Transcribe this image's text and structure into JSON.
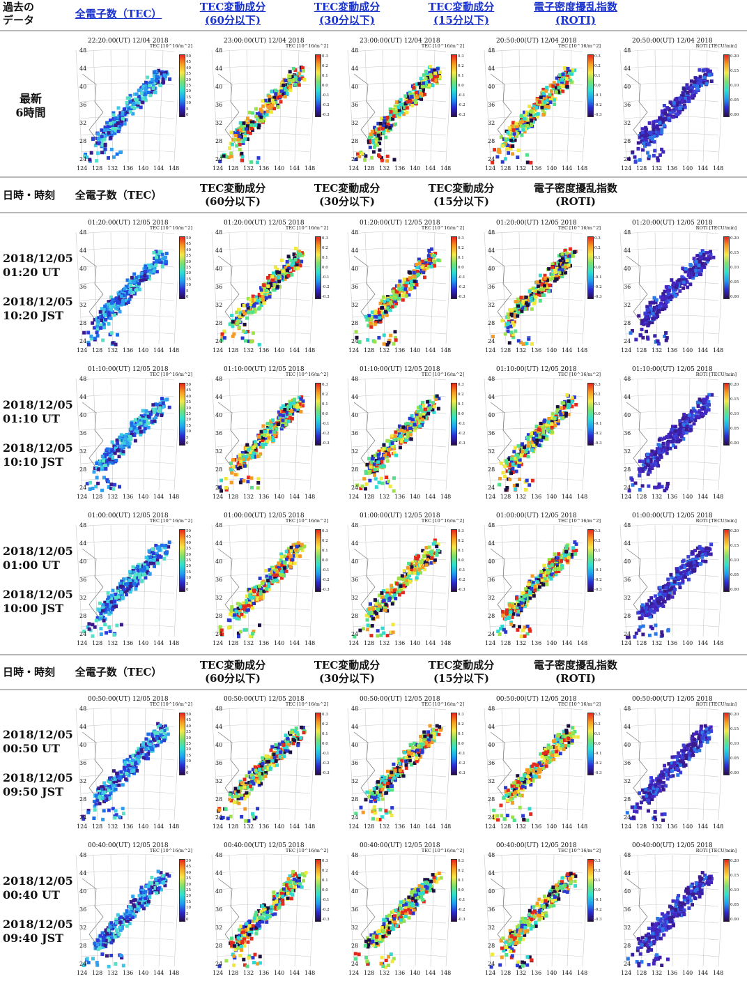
{
  "header_top": {
    "col0": [
      "過去の",
      "データ"
    ],
    "cols": [
      {
        "l1": "全電子数（TEC）",
        "l2": "",
        "link": true
      },
      {
        "l1": "TEC変動成分",
        "l2": "(60分以下)",
        "link": true
      },
      {
        "l1": "TEC変動成分",
        "l2": "(30分以下)",
        "link": true
      },
      {
        "l1": "TEC変動成分",
        "l2": "(15分以下)",
        "link": true
      },
      {
        "l1": "電子密度擾乱指数",
        "l2": "(ROTI)",
        "link": true
      }
    ]
  },
  "header_mid": {
    "col0": "日時・時刻",
    "cols": [
      {
        "l1": "全電子数（TEC）",
        "l2": ""
      },
      {
        "l1": "TEC変動成分",
        "l2": "(60分以下)"
      },
      {
        "l1": "TEC変動成分",
        "l2": "(30分以下)"
      },
      {
        "l1": "TEC変動成分",
        "l2": "(15分以下)"
      },
      {
        "l1": "電子密度擾乱指数",
        "l2": "(ROTI)"
      }
    ]
  },
  "latest": {
    "label": [
      "最新",
      "6時間"
    ],
    "timestamps": [
      "22:20:00(UT) 12/04 2018",
      "23:00:00(UT) 12/04 2018",
      "23:00:00(UT) 12/04 2018",
      "20:50:00(UT) 12/04 2018",
      "20:50:00(UT) 12/04 2018"
    ]
  },
  "rows": [
    {
      "ut": "2018/12/05",
      "ut_time": "01:20 UT",
      "jst": "2018/12/05",
      "jst_time": "10:20 JST",
      "ts": "01:20:00(UT) 12/05 2018"
    },
    {
      "ut": "2018/12/05",
      "ut_time": "01:10 UT",
      "jst": "2018/12/05",
      "jst_time": "10:10 JST",
      "ts": "01:10:00(UT) 12/05 2018"
    },
    {
      "ut": "2018/12/05",
      "ut_time": "01:00 UT",
      "jst": "2018/12/05",
      "jst_time": "10:00 JST",
      "ts": "01:00:00(UT) 12/05 2018"
    },
    {
      "ut": "2018/12/05",
      "ut_time": "00:50 UT",
      "jst": "2018/12/05",
      "jst_time": "09:50 JST",
      "ts": "00:50:00(UT) 12/05 2018"
    },
    {
      "ut": "2018/12/05",
      "ut_time": "00:40 UT",
      "jst": "2018/12/05",
      "jst_time": "09:40 JST",
      "ts": "00:40:00(UT) 12/05 2018"
    }
  ],
  "map": {
    "lat_labels": [
      "48",
      "44",
      "40",
      "36",
      "32",
      "28",
      "24"
    ],
    "lon_labels": [
      "124",
      "128",
      "132",
      "136",
      "140",
      "144",
      "148"
    ],
    "units": [
      "TEC [10^16/m^2]",
      "TEC [10^16/m^2]",
      "TEC [10^16/m^2]",
      "TEC [10^16/m^2]",
      "ROTI [TECU/min]"
    ],
    "tec_ticks": [
      "50",
      "45",
      "40",
      "35",
      "30",
      "25",
      "20",
      "15",
      "10",
      "5",
      "0"
    ],
    "dtec_ticks": [
      "0.3",
      "0.2",
      "0.1",
      "0.0",
      "-0.1",
      "-0.2",
      "-0.3"
    ],
    "roti_ticks": [
      "0.20",
      "0.15",
      "0.10",
      "0.05",
      "0.00"
    ]
  },
  "colors": {
    "link": "#1a33cc",
    "rule": "#b9b9b9"
  }
}
